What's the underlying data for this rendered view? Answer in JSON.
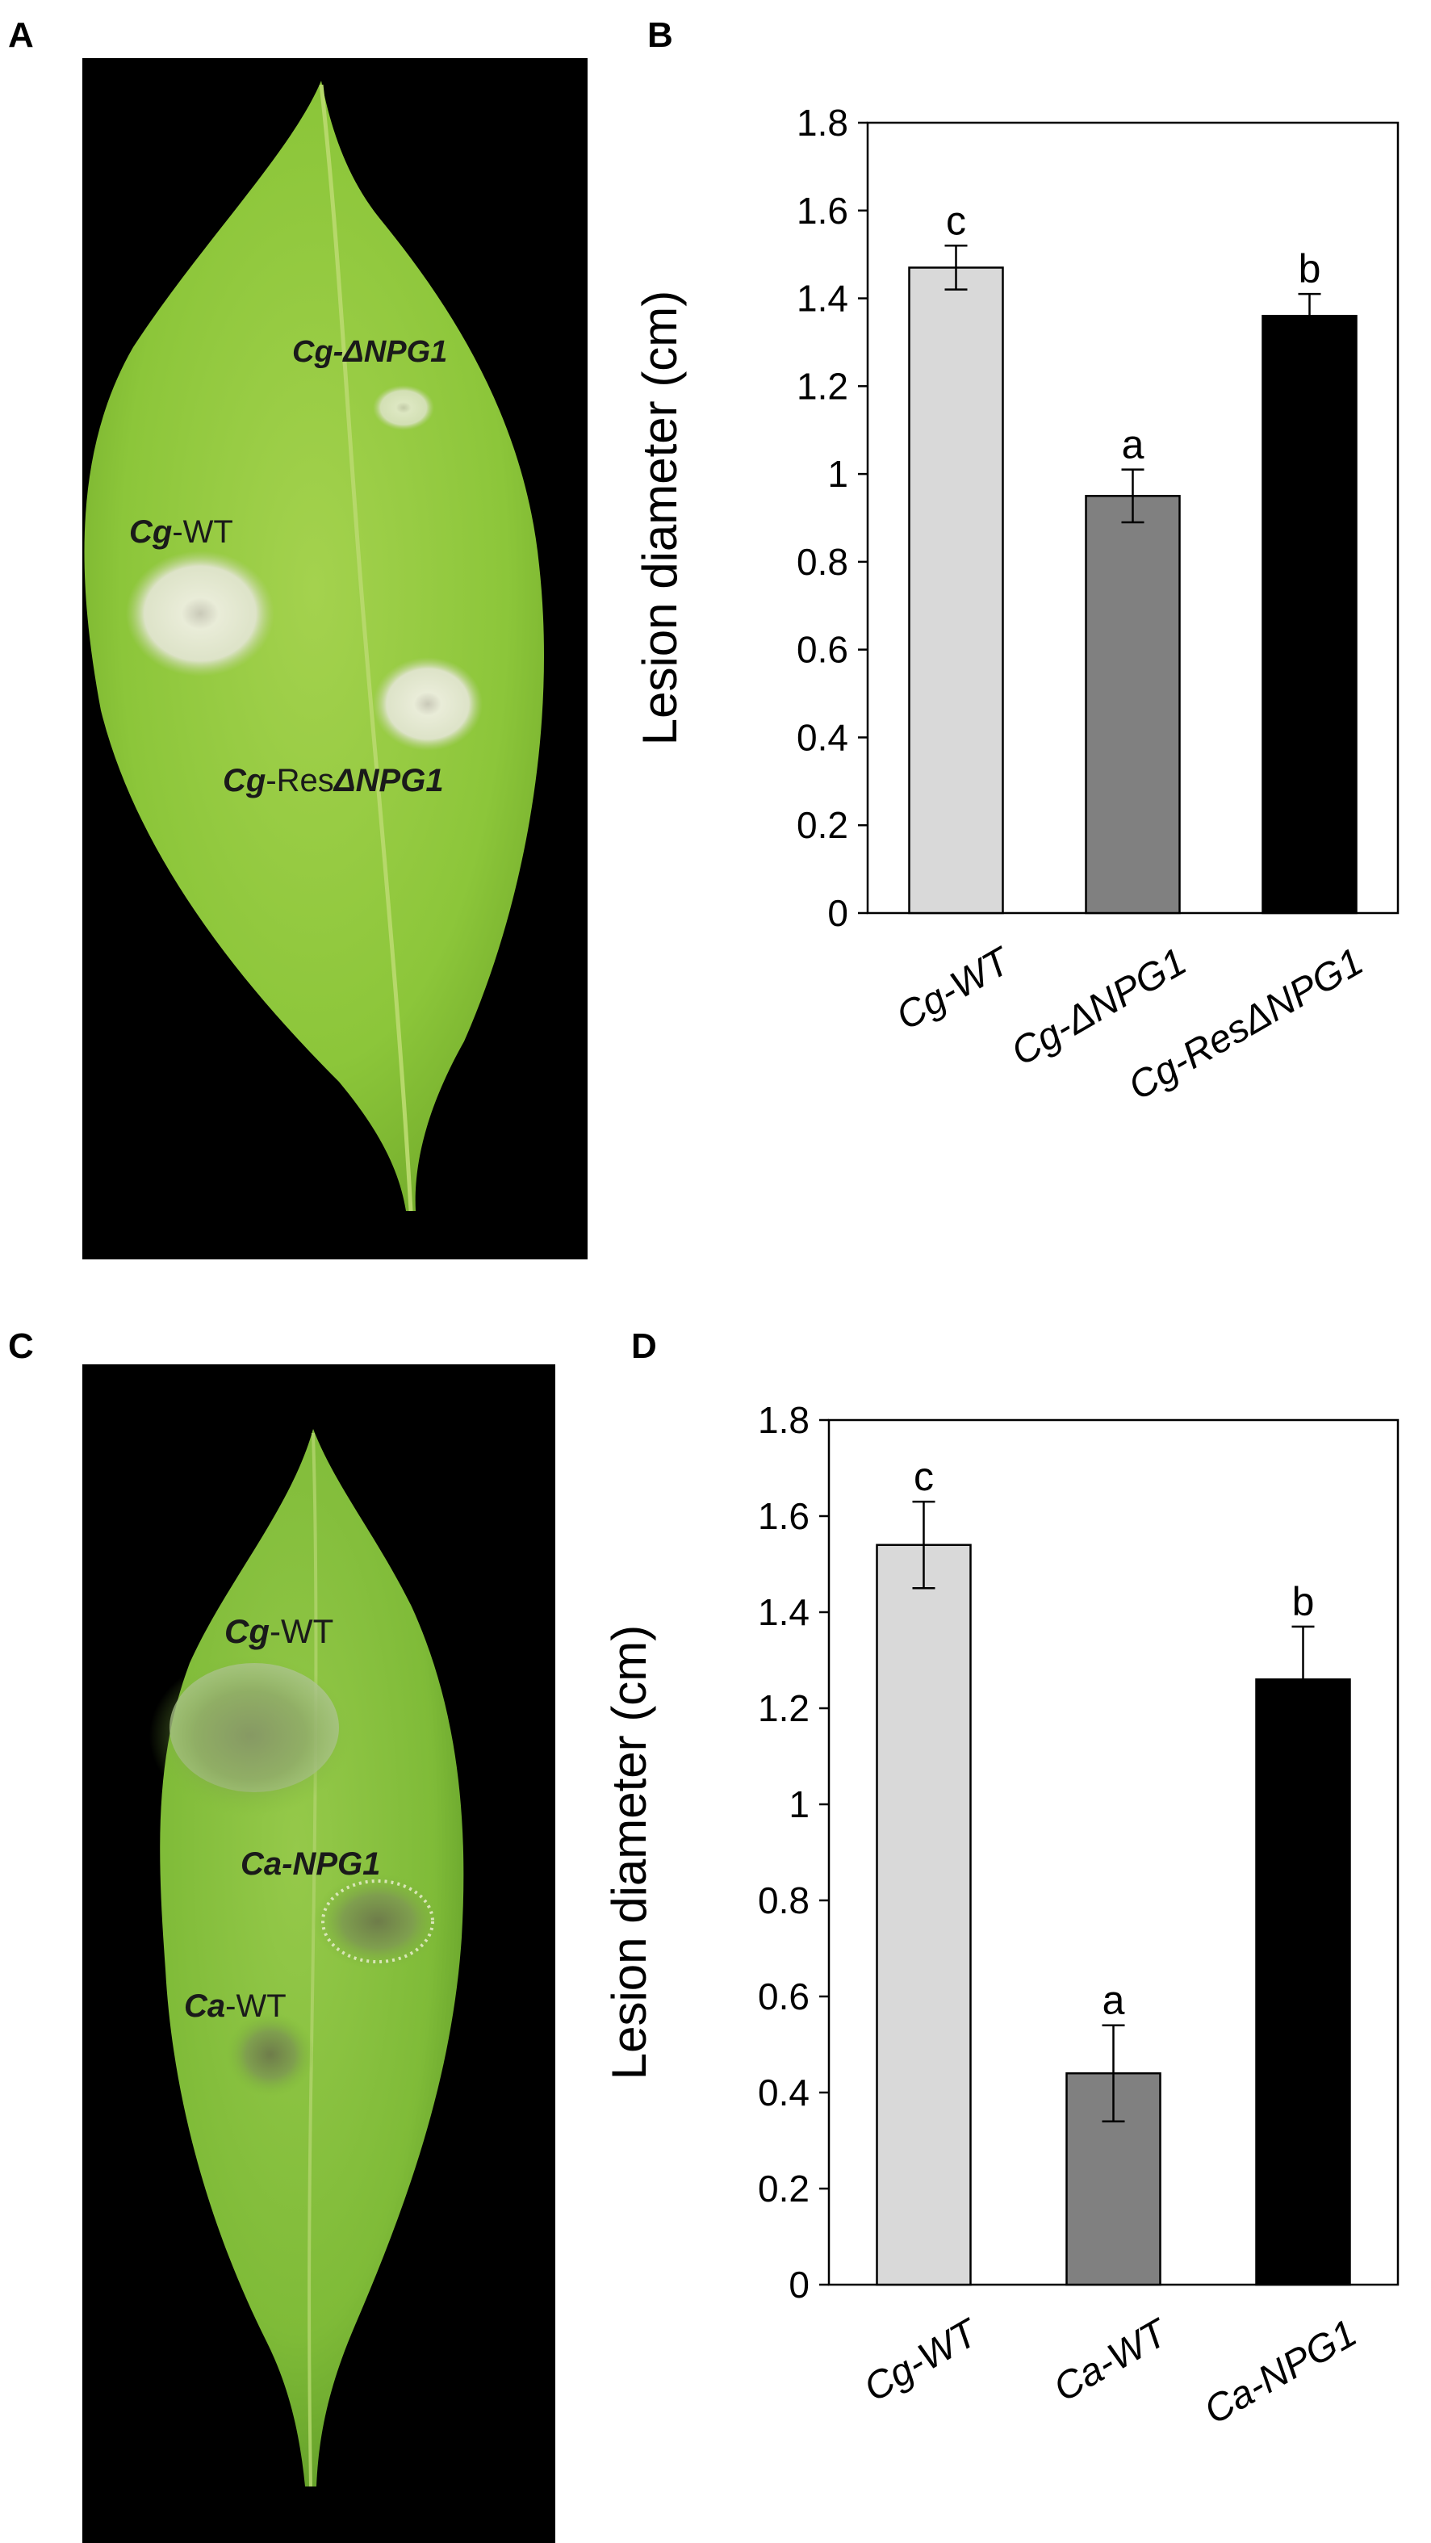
{
  "panels": {
    "A": {
      "letter": "A",
      "labels": [
        {
          "italic": "Cg-ΔNPG1",
          "plain": ""
        },
        {
          "italic": "Cg",
          "plain": "-WT"
        },
        {
          "italic": "Cg",
          "plain": "-Res",
          "italic2": "ΔNPG1"
        }
      ]
    },
    "B": {
      "letter": "B"
    },
    "C": {
      "letter": "C",
      "labels": [
        {
          "italic": "Cg",
          "plain": "-WT"
        },
        {
          "italic": "Ca-NPG1",
          "plain": ""
        },
        {
          "italic": "Ca",
          "plain": "-WT"
        }
      ]
    },
    "D": {
      "letter": "D"
    }
  },
  "colors": {
    "background": "#000000",
    "leaf": "#8cc63a",
    "bar_light": "#d9d9d9",
    "bar_mid": "#808080",
    "bar_dark": "#000000"
  },
  "chart_data": [
    {
      "panel": "B",
      "type": "bar",
      "categories": [
        "Cg-WT",
        "Cg-ΔNPG1",
        "Cg-ResΔNPG1"
      ],
      "values": [
        1.47,
        0.95,
        1.36
      ],
      "errors": [
        0.05,
        0.06,
        0.05
      ],
      "significance": [
        "c",
        "a",
        "b"
      ],
      "bar_colors": [
        "#d9d9d9",
        "#808080",
        "#000000"
      ],
      "title": "",
      "xlabel": "",
      "ylabel": "Lesion diameter  (cm)",
      "ylim": [
        0,
        1.8
      ],
      "yticks": [
        0,
        0.2,
        0.4,
        0.6,
        0.8,
        1,
        1.2,
        1.4,
        1.6,
        1.8
      ],
      "ytick_labels": [
        "0",
        "0.2",
        "0.4",
        "0.6",
        "0.8",
        "1",
        "1.2",
        "1.4",
        "1.6",
        "1.8"
      ],
      "grid": false,
      "legend": "none"
    },
    {
      "panel": "D",
      "type": "bar",
      "categories": [
        "Cg-WT",
        "Ca-WT",
        "Ca-NPG1"
      ],
      "values": [
        1.54,
        0.44,
        1.26
      ],
      "errors": [
        0.09,
        0.1,
        0.11
      ],
      "significance": [
        "c",
        "a",
        "b"
      ],
      "bar_colors": [
        "#d9d9d9",
        "#808080",
        "#000000"
      ],
      "title": "",
      "xlabel": "",
      "ylabel": "Lesion diameter  (cm)",
      "ylim": [
        0,
        1.8
      ],
      "yticks": [
        0,
        0.2,
        0.4,
        0.6,
        0.8,
        1,
        1.2,
        1.4,
        1.6,
        1.8
      ],
      "ytick_labels": [
        "0",
        "0.2",
        "0.4",
        "0.6",
        "0.8",
        "1",
        "1.2",
        "1.4",
        "1.6",
        "1.8"
      ],
      "grid": false,
      "legend": "none"
    }
  ]
}
